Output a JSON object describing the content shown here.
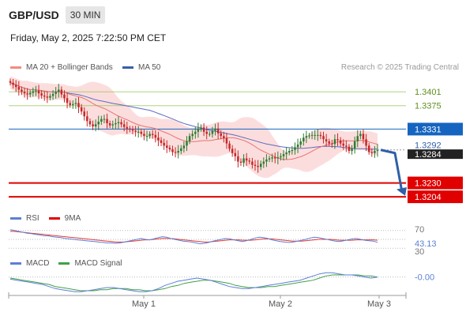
{
  "header": {
    "symbol": "GBP/USD",
    "timeframe": "30 MIN",
    "datetime": "Friday, May 2, 2025 7:22:50 PM CET"
  },
  "legend": {
    "ma20_label": "MA 20 + Bollinger Bands",
    "ma50_label": "MA 50",
    "credit": "Research © 2025 Trading Central"
  },
  "colors": {
    "candle_up": "#2e7d32",
    "candle_down": "#c62828",
    "ma20": "#e57373",
    "ma50": "#5c6bc0",
    "band_fill": "#fbd7d7",
    "resistance": "#8bc34a",
    "pivot": "#1565c0",
    "support": "#e00000",
    "rsi": "#5c7fd6",
    "rsi_ma": "#e53935",
    "macd": "#5c7fd6",
    "macd_signal": "#43a047",
    "arrow": "#2f5fa8",
    "last_price_box": "#222222"
  },
  "chart_data": [
    {
      "type": "candlestick",
      "title": "GBP/USD",
      "ylim": [
        1.3176,
        1.3425
      ],
      "x_ticks": [
        "May 1",
        "May 2",
        "May 3"
      ],
      "levels": [
        {
          "name": "resistance-2",
          "value": 1.3401,
          "label": "1.3401",
          "style": "resistance"
        },
        {
          "name": "resistance-1",
          "value": 1.3375,
          "label": "1.3375",
          "style": "resistance"
        },
        {
          "name": "pivot",
          "value": 1.3331,
          "label": "1.3331",
          "style": "pivot"
        },
        {
          "name": "support-1",
          "value": 1.323,
          "label": "1.3230",
          "style": "support"
        },
        {
          "name": "support-2",
          "value": 1.3204,
          "label": "1.3204",
          "style": "support"
        }
      ],
      "last_price": {
        "value": 1.3284,
        "label": "1.3284"
      },
      "current_price": {
        "value": 1.3292,
        "label": "1.3292"
      },
      "close_series": [
        1.3418,
        1.3414,
        1.341,
        1.3405,
        1.3401,
        1.3398,
        1.3396,
        1.3399,
        1.3402,
        1.3403,
        1.3398,
        1.3394,
        1.3392,
        1.339,
        1.3393,
        1.3397,
        1.3401,
        1.3405,
        1.3396,
        1.3389,
        1.338,
        1.3376,
        1.3378,
        1.338,
        1.3372,
        1.3364,
        1.3355,
        1.3346,
        1.334,
        1.3336,
        1.334,
        1.3345,
        1.335,
        1.335,
        1.3342,
        1.3338,
        1.334,
        1.3342,
        1.3344,
        1.334,
        1.3335,
        1.3332,
        1.333,
        1.3328,
        1.3326,
        1.3326,
        1.3322,
        1.3318,
        1.3318,
        1.3322,
        1.332,
        1.3315,
        1.331,
        1.3305,
        1.33,
        1.3296,
        1.3293,
        1.3288,
        1.3287,
        1.329,
        1.3295,
        1.33,
        1.3308,
        1.3318,
        1.3322,
        1.3326,
        1.3332,
        1.3334,
        1.3326,
        1.3322,
        1.3322,
        1.3328,
        1.3332,
        1.3323,
        1.3318,
        1.3314,
        1.3304,
        1.3294,
        1.3286,
        1.328,
        1.327,
        1.3268,
        1.3276,
        1.3272,
        1.327,
        1.3264,
        1.3262,
        1.326,
        1.3266,
        1.327,
        1.3274,
        1.3276,
        1.3278,
        1.3276,
        1.3278,
        1.328,
        1.3284,
        1.3287,
        1.329,
        1.3292,
        1.3297,
        1.3302,
        1.3308,
        1.3315,
        1.3318,
        1.3319,
        1.332,
        1.332,
        1.332,
        1.3318,
        1.3312,
        1.3308,
        1.3304,
        1.3303,
        1.3312,
        1.331,
        1.3304,
        1.33,
        1.3298,
        1.329,
        1.3294,
        1.3308,
        1.3318,
        1.3322,
        1.3312,
        1.33,
        1.3288,
        1.3286,
        1.329,
        1.3292
      ]
    },
    {
      "type": "line",
      "title": "RSI",
      "series": [
        {
          "name": "RSI",
          "values": [
            72,
            70,
            68,
            66,
            64,
            63,
            61,
            60,
            58,
            58,
            56,
            55,
            54,
            52,
            51,
            50,
            49,
            48,
            47,
            46,
            45,
            44,
            43,
            42,
            42,
            41,
            42,
            44,
            46,
            48,
            50,
            52,
            50,
            49,
            51,
            54,
            56,
            55,
            52,
            50,
            48,
            46,
            45,
            44,
            42,
            40,
            41,
            43,
            46,
            48,
            50,
            52,
            51,
            49,
            47,
            45,
            47,
            50,
            53,
            55,
            54,
            52,
            49,
            47,
            45,
            44,
            43,
            44,
            46,
            48,
            50,
            53,
            55,
            54,
            52,
            50,
            48,
            46,
            45,
            47,
            49,
            51,
            52,
            50,
            48,
            47,
            46,
            43.13
          ]
        },
        {
          "name": "9MA",
          "values": [
            68,
            68,
            67,
            66,
            65,
            64,
            63,
            62,
            61,
            60,
            59,
            58,
            57,
            56,
            55,
            54,
            53,
            52,
            51,
            50,
            49,
            48,
            47,
            46,
            45,
            44,
            44,
            44,
            45,
            46,
            47,
            48,
            49,
            49,
            50,
            51,
            52,
            52,
            52,
            51,
            50,
            49,
            48,
            47,
            46,
            45,
            44,
            44,
            45,
            46,
            47,
            48,
            49,
            49,
            49,
            48,
            48,
            48,
            49,
            50,
            51,
            51,
            51,
            50,
            49,
            48,
            47,
            46,
            46,
            46,
            47,
            48,
            49,
            50,
            50,
            50,
            50,
            49,
            48,
            48,
            48,
            48,
            49,
            49,
            49,
            49,
            49,
            48
          ]
        }
      ],
      "levels": [
        70,
        50,
        30
      ],
      "current_label": "43.13",
      "level_label": "70",
      "lower_label": "30"
    },
    {
      "type": "line",
      "title": "MACD",
      "series": [
        {
          "name": "MACD",
          "values": [
            -0.0002,
            -0.0003,
            -0.0004,
            -0.0005,
            -0.0006,
            -0.0007,
            -0.0009,
            -0.0011,
            -0.0012,
            -0.0013,
            -0.0014,
            -0.0014,
            -0.0013,
            -0.0012,
            -0.0011,
            -0.001,
            -0.001,
            -0.0011,
            -0.0012,
            -0.0013,
            -0.0014,
            -0.0014,
            -0.0013,
            -0.0011,
            -0.0008,
            -0.0006,
            -0.0004,
            -0.0003,
            -0.0002,
            -0.0001,
            -0.0002,
            -0.0003,
            -0.0005,
            -0.0007,
            -0.0009,
            -0.001,
            -0.0011,
            -0.0011,
            -0.001,
            -0.0009,
            -0.0008,
            -0.0007,
            -0.0006,
            -0.0005,
            -0.0004,
            -0.0003,
            -0.0001,
            0.0001,
            0.0003,
            0.0004,
            0.0004,
            0.0003,
            0.0002,
            0.0002,
            0.0001,
            0.0,
            -0.0001,
            0.0
          ]
        },
        {
          "name": "MACD Signal",
          "values": [
            -0.0001,
            -0.0002,
            -0.0003,
            -0.0004,
            -0.0005,
            -0.0006,
            -0.0007,
            -0.0009,
            -0.001,
            -0.0011,
            -0.0012,
            -0.0013,
            -0.0013,
            -0.0013,
            -0.0012,
            -0.0012,
            -0.0011,
            -0.0011,
            -0.0011,
            -0.0012,
            -0.0012,
            -0.0013,
            -0.0013,
            -0.0012,
            -0.0011,
            -0.0009,
            -0.0008,
            -0.0006,
            -0.0005,
            -0.0004,
            -0.0003,
            -0.0003,
            -0.0004,
            -0.0005,
            -0.0006,
            -0.0008,
            -0.0009,
            -0.001,
            -0.001,
            -0.001,
            -0.0009,
            -0.0009,
            -0.0008,
            -0.0007,
            -0.0006,
            -0.0005,
            -0.0004,
            -0.0003,
            -0.0001,
            0.0001,
            0.0002,
            0.0002,
            0.0002,
            0.0002,
            0.0002,
            0.0001,
            0.0001,
            0.0
          ]
        }
      ],
      "current_label": "-0.00"
    }
  ],
  "indicators": {
    "rsi_label": "RSI",
    "rsi_ma_label": "9MA",
    "macd_label": "MACD",
    "macd_signal_label": "MACD Signal"
  }
}
